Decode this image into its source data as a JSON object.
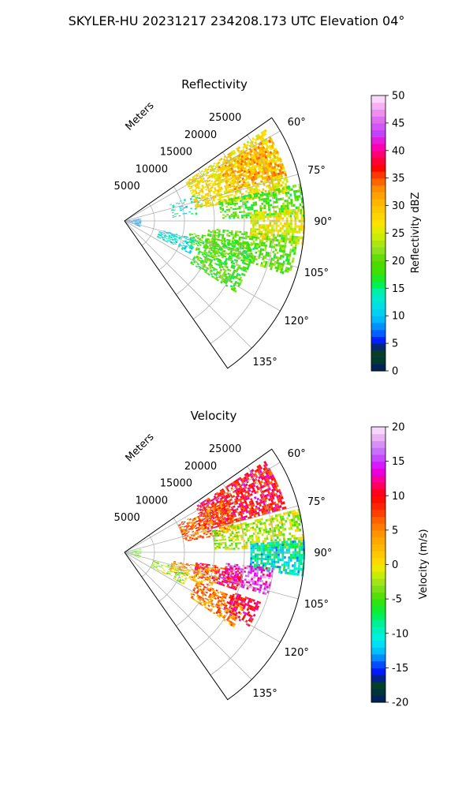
{
  "figure": {
    "suptitle": "SKYLER-HU  20231217  234208.173 UTC Elevation 04°"
  },
  "chart_data": [
    {
      "type": "heatmap",
      "projection": "polar-sector",
      "title": "Reflectivity",
      "radial_label": "Meters",
      "radial_ticks": [
        "5000",
        "10000",
        "15000",
        "20000",
        "25000"
      ],
      "radial_tick_values": [
        5000,
        10000,
        15000,
        20000,
        25000
      ],
      "r_max": 30000,
      "azimuth_ticks": [
        "60°",
        "75°",
        "90°",
        "105°",
        "120°",
        "135°"
      ],
      "azimuth_tick_values": [
        60,
        75,
        90,
        105,
        120,
        135
      ],
      "azimuth_range": [
        55,
        145
      ],
      "grid": true,
      "colorbar": {
        "label": "Reflectivity dBZ",
        "ticks": [
          "0",
          "5",
          "10",
          "15",
          "20",
          "25",
          "30",
          "35",
          "40",
          "45",
          "50"
        ],
        "range": [
          0,
          50
        ]
      },
      "echo_regions": [
        {
          "az": [
            57,
            80
          ],
          "r": [
            12000,
            28000
          ],
          "value": 27,
          "density": 0.62
        },
        {
          "az": [
            60,
            74
          ],
          "r": [
            18000,
            28000
          ],
          "value": 31,
          "density": 0.55
        },
        {
          "az": [
            78,
            88
          ],
          "r": [
            16000,
            30000
          ],
          "value": 19,
          "density": 0.55
        },
        {
          "az": [
            86,
            97
          ],
          "r": [
            21000,
            30000
          ],
          "value": 26,
          "density": 0.7
        },
        {
          "az": [
            95,
            108
          ],
          "r": [
            14000,
            29000
          ],
          "value": 20,
          "density": 0.55
        },
        {
          "az": [
            100,
            112
          ],
          "r": [
            11000,
            22000
          ],
          "value": 19,
          "density": 0.5
        },
        {
          "az": [
            112,
            122
          ],
          "r": [
            13000,
            22000
          ],
          "value": 19,
          "density": 0.6
        },
        {
          "az": [
            104,
            116
          ],
          "r": [
            6000,
            12000
          ],
          "value": 12,
          "density": 0.45
        },
        {
          "az": [
            70,
            86
          ],
          "r": [
            8000,
            13000
          ],
          "value": 13,
          "density": 0.18
        },
        {
          "az": [
            80,
            110
          ],
          "r": [
            0,
            2600
          ],
          "value": 9,
          "density": 0.5
        }
      ]
    },
    {
      "type": "heatmap",
      "projection": "polar-sector",
      "title": "Velocity",
      "radial_label": "Meters",
      "radial_ticks": [
        "5000",
        "10000",
        "15000",
        "20000",
        "25000"
      ],
      "radial_tick_values": [
        5000,
        10000,
        15000,
        20000,
        25000
      ],
      "r_max": 30000,
      "azimuth_ticks": [
        "60°",
        "75°",
        "90°",
        "105°",
        "120°",
        "135°"
      ],
      "azimuth_tick_values": [
        60,
        75,
        90,
        105,
        120,
        135
      ],
      "azimuth_range": [
        55,
        145
      ],
      "grid": true,
      "colorbar": {
        "label": "Velocity (m/s)",
        "ticks": [
          "-20",
          "-15",
          "-10",
          "-5",
          "0",
          "5",
          "10",
          "15",
          "20"
        ],
        "range": [
          -20,
          20
        ]
      },
      "echo_regions": [
        {
          "az": [
            57,
            75
          ],
          "r": [
            14000,
            28000
          ],
          "value": 10,
          "density": 0.7
        },
        {
          "az": [
            62,
            80
          ],
          "r": [
            10000,
            19000
          ],
          "value": 6,
          "density": 0.55
        },
        {
          "az": [
            76,
            88
          ],
          "r": [
            15000,
            30000
          ],
          "value": -2,
          "density": 0.55
        },
        {
          "az": [
            86,
            97
          ],
          "r": [
            21000,
            30000
          ],
          "value": -10,
          "density": 0.75
        },
        {
          "az": [
            96,
            106
          ],
          "r": [
            17000,
            25000
          ],
          "value": 15,
          "density": 0.65
        },
        {
          "az": [
            98,
            108
          ],
          "r": [
            12000,
            20000
          ],
          "value": 10,
          "density": 0.6
        },
        {
          "az": [
            100,
            112
          ],
          "r": [
            8000,
            16000
          ],
          "value": 4,
          "density": 0.5
        },
        {
          "az": [
            112,
            124
          ],
          "r": [
            13000,
            22000
          ],
          "value": 5,
          "density": 0.6
        },
        {
          "az": [
            110,
            120
          ],
          "r": [
            19000,
            24000
          ],
          "value": 11,
          "density": 0.55
        },
        {
          "az": [
            106,
            118
          ],
          "r": [
            5000,
            11000
          ],
          "value": -2,
          "density": 0.4
        },
        {
          "az": [
            80,
            110
          ],
          "r": [
            0,
            2600
          ],
          "value": -4,
          "density": 0.5
        }
      ]
    }
  ]
}
